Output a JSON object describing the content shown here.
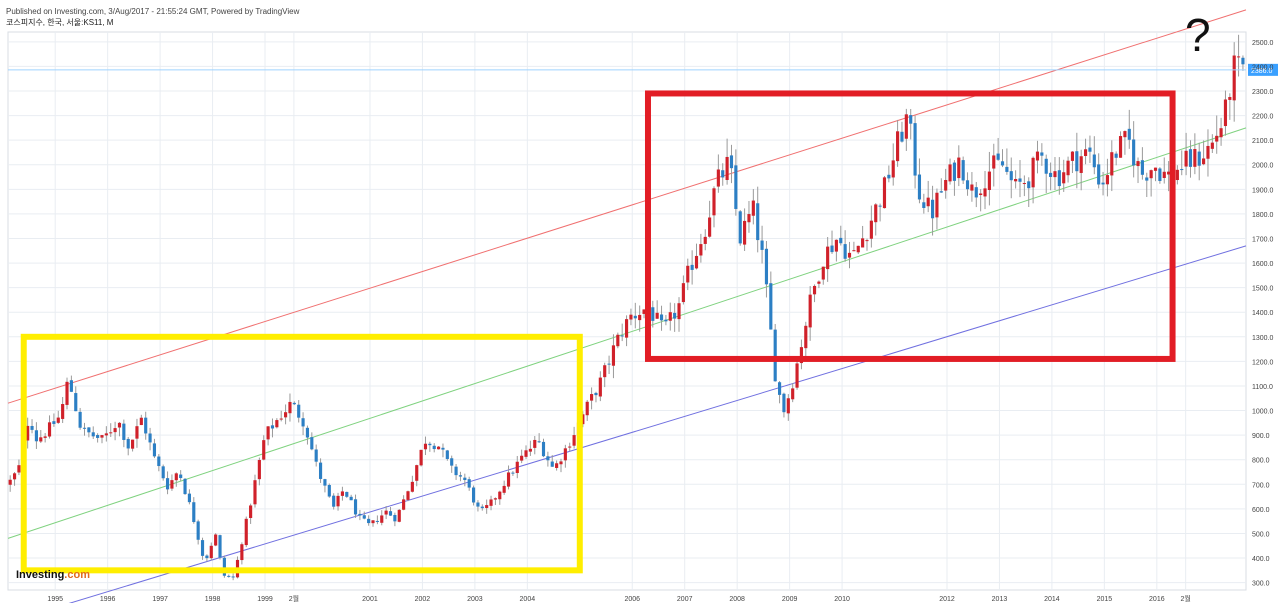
{
  "header": {
    "published": "Published on Investing.com, 3/Aug/2017 - 21:55:24 GMT, Powered by TradingView",
    "symbol": "코스피지수, 한국, 서울:KS11, M"
  },
  "logo": {
    "text": "Investing",
    "suffix": ".com"
  },
  "annotation": {
    "question_mark": "?"
  },
  "chart_data": {
    "type": "candlestick",
    "title": "코스피지수, 한국, 서울:KS11, M",
    "xlabel": "",
    "ylabel": "",
    "ylim": [
      270,
      2540
    ],
    "xlim": [
      1994.1,
      2017.7
    ],
    "y_ticks": [
      "300.0",
      "400.0",
      "500.0",
      "600.0",
      "700.0",
      "800.0",
      "900.0",
      "1000.0",
      "1100.0",
      "1200.0",
      "1300.0",
      "1400.0",
      "1500.0",
      "1600.0",
      "1700.0",
      "1800.0",
      "1900.0",
      "2000.0",
      "2100.0",
      "2200.0",
      "2300.0",
      "2400.0",
      "2500.0"
    ],
    "x_ticks": [
      {
        "label": "1995",
        "x": 1995.0
      },
      {
        "label": "1996",
        "x": 1996.0
      },
      {
        "label": "1997",
        "x": 1997.0
      },
      {
        "label": "1998",
        "x": 1998.0
      },
      {
        "label": "1999",
        "x": 1999.0
      },
      {
        "label": "2월",
        "x": 1999.55
      },
      {
        "label": "2001",
        "x": 2001.0
      },
      {
        "label": "2002",
        "x": 2002.0
      },
      {
        "label": "2003",
        "x": 2003.0
      },
      {
        "label": "2004",
        "x": 2004.0
      },
      {
        "label": "2006",
        "x": 2006.0
      },
      {
        "label": "2007",
        "x": 2007.0
      },
      {
        "label": "2008",
        "x": 2008.0
      },
      {
        "label": "2009",
        "x": 2009.0
      },
      {
        "label": "2010",
        "x": 2010.0
      },
      {
        "label": "2012",
        "x": 2012.0
      },
      {
        "label": "2013",
        "x": 2013.0
      },
      {
        "label": "2014",
        "x": 2014.0
      },
      {
        "label": "2015",
        "x": 2015.0
      },
      {
        "label": "2016",
        "x": 2016.0
      },
      {
        "label": "2월",
        "x": 2016.55
      }
    ],
    "last_price": {
      "value": 2386.0,
      "label": "2386.0",
      "color": "#3aa0ff"
    },
    "colors": {
      "up": "#d0212a",
      "down": "#2c7fc4",
      "wick": "#9a9a9a",
      "grid": "#e9edf2"
    },
    "trend_lines": [
      {
        "name": "upper",
        "color": "#f07070",
        "points": [
          [
            1994.1,
            1030
          ],
          [
            2017.7,
            2630
          ]
        ]
      },
      {
        "name": "middle",
        "color": "#7fd27f",
        "points": [
          [
            1994.1,
            480
          ],
          [
            2017.7,
            2150
          ]
        ]
      },
      {
        "name": "lower",
        "color": "#7070e0",
        "points": [
          [
            1994.1,
            140
          ],
          [
            2017.7,
            1670
          ]
        ]
      }
    ],
    "highlight_boxes": [
      {
        "name": "yellow-range-box",
        "color": "#ffee00",
        "x": [
          1994.4,
          2005.0
        ],
        "y": [
          350,
          1300
        ]
      },
      {
        "name": "red-range-box",
        "color": "#e21d25",
        "x": [
          2006.3,
          2016.3
        ],
        "y": [
          1210,
          2290
        ]
      }
    ],
    "anchors": [
      [
        1994.1,
        700
      ],
      [
        1994.3,
        760
      ],
      [
        1994.5,
        980
      ],
      [
        1994.65,
        880
      ],
      [
        1994.9,
        930
      ],
      [
        1995.1,
        980
      ],
      [
        1995.25,
        1130
      ],
      [
        1995.5,
        920
      ],
      [
        1995.9,
        880
      ],
      [
        1996.2,
        960
      ],
      [
        1996.4,
        850
      ],
      [
        1996.65,
        970
      ],
      [
        1996.9,
        800
      ],
      [
        1997.15,
        690
      ],
      [
        1997.35,
        760
      ],
      [
        1997.6,
        590
      ],
      [
        1997.85,
        380
      ],
      [
        1998.05,
        500
      ],
      [
        1998.2,
        330
      ],
      [
        1998.4,
        320
      ],
      [
        1998.7,
        600
      ],
      [
        1999.0,
        900
      ],
      [
        1999.3,
        980
      ],
      [
        1999.5,
        1030
      ],
      [
        1999.75,
        950
      ],
      [
        2000.0,
        760
      ],
      [
        2000.3,
        600
      ],
      [
        2000.5,
        680
      ],
      [
        2000.8,
        560
      ],
      [
        2001.0,
        530
      ],
      [
        2001.3,
        590
      ],
      [
        2001.5,
        560
      ],
      [
        2001.8,
        720
      ],
      [
        2002.05,
        880
      ],
      [
        2002.3,
        860
      ],
      [
        2002.55,
        760
      ],
      [
        2002.8,
        720
      ],
      [
        2003.1,
        580
      ],
      [
        2003.3,
        620
      ],
      [
        2003.6,
        720
      ],
      [
        2003.9,
        810
      ],
      [
        2004.2,
        880
      ],
      [
        2004.5,
        760
      ],
      [
        2004.8,
        870
      ],
      [
        2005.1,
        1000
      ],
      [
        2005.4,
        1120
      ],
      [
        2005.7,
        1280
      ],
      [
        2005.95,
        1380
      ],
      [
        2006.3,
        1420
      ],
      [
        2006.6,
        1320
      ],
      [
        2006.9,
        1430
      ],
      [
        2007.1,
        1580
      ],
      [
        2007.4,
        1750
      ],
      [
        2007.6,
        1920
      ],
      [
        2007.85,
        2010
      ],
      [
        2008.05,
        1700
      ],
      [
        2008.3,
        1820
      ],
      [
        2008.5,
        1600
      ],
      [
        2008.75,
        1100
      ],
      [
        2008.9,
        1000
      ],
      [
        2009.1,
        1150
      ],
      [
        2009.4,
        1450
      ],
      [
        2009.65,
        1630
      ],
      [
        2009.9,
        1700
      ],
      [
        2010.2,
        1620
      ],
      [
        2010.5,
        1750
      ],
      [
        2010.8,
        1900
      ],
      [
        2011.05,
        2080
      ],
      [
        2011.25,
        2200
      ],
      [
        2011.45,
        1900
      ],
      [
        2011.7,
        1800
      ],
      [
        2011.95,
        1920
      ],
      [
        2012.25,
        2020
      ],
      [
        2012.5,
        1880
      ],
      [
        2012.8,
        1980
      ],
      [
        2013.05,
        2000
      ],
      [
        2013.3,
        1900
      ],
      [
        2013.55,
        1950
      ],
      [
        2013.8,
        2030
      ],
      [
        2014.1,
        1950
      ],
      [
        2014.4,
        2020
      ],
      [
        2014.7,
        2050
      ],
      [
        2014.95,
        1920
      ],
      [
        2015.2,
        2050
      ],
      [
        2015.45,
        2100
      ],
      [
        2015.7,
        1960
      ],
      [
        2015.95,
        2000
      ],
      [
        2016.2,
        1950
      ],
      [
        2016.5,
        2000
      ],
      [
        2016.8,
        2030
      ],
      [
        2017.05,
        2080
      ],
      [
        2017.3,
        2200
      ],
      [
        2017.45,
        2390
      ],
      [
        2017.6,
        2386
      ]
    ]
  }
}
